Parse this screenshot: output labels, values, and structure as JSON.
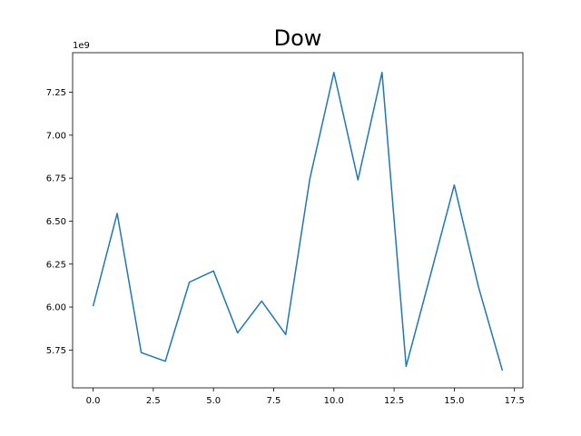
{
  "chart_data": {
    "type": "line",
    "title": "Dow",
    "xlabel": "",
    "ylabel": "",
    "y_offset_label": "1e9",
    "xlim": [
      -0.85,
      17.85
    ],
    "ylim": [
      5.53,
      7.48
    ],
    "x_ticks": [
      0,
      2.5,
      5,
      7.5,
      10,
      12.5,
      15,
      17.5
    ],
    "x_tick_labels": [
      "0.0",
      "2.5",
      "5.0",
      "7.5",
      "10.0",
      "12.5",
      "15.0",
      "17.5"
    ],
    "y_ticks": [
      5.75,
      6.0,
      6.25,
      6.5,
      6.75,
      7.0,
      7.25
    ],
    "y_tick_labels": [
      "5.75",
      "6.00",
      "6.25",
      "6.50",
      "6.75",
      "7.00",
      "7.25"
    ],
    "grid": false,
    "legend": "none",
    "series": [
      {
        "color": "#1f77b4",
        "x": [
          0,
          1,
          2,
          3,
          4,
          5,
          6,
          7,
          8,
          9,
          10,
          11,
          12,
          13,
          14,
          15,
          16,
          17
        ],
        "values": [
          6.005,
          6.545,
          5.735,
          5.685,
          6.145,
          6.21,
          5.85,
          6.035,
          5.84,
          6.745,
          7.365,
          6.74,
          7.365,
          5.655,
          6.18,
          6.71,
          6.12,
          5.63
        ]
      }
    ]
  }
}
